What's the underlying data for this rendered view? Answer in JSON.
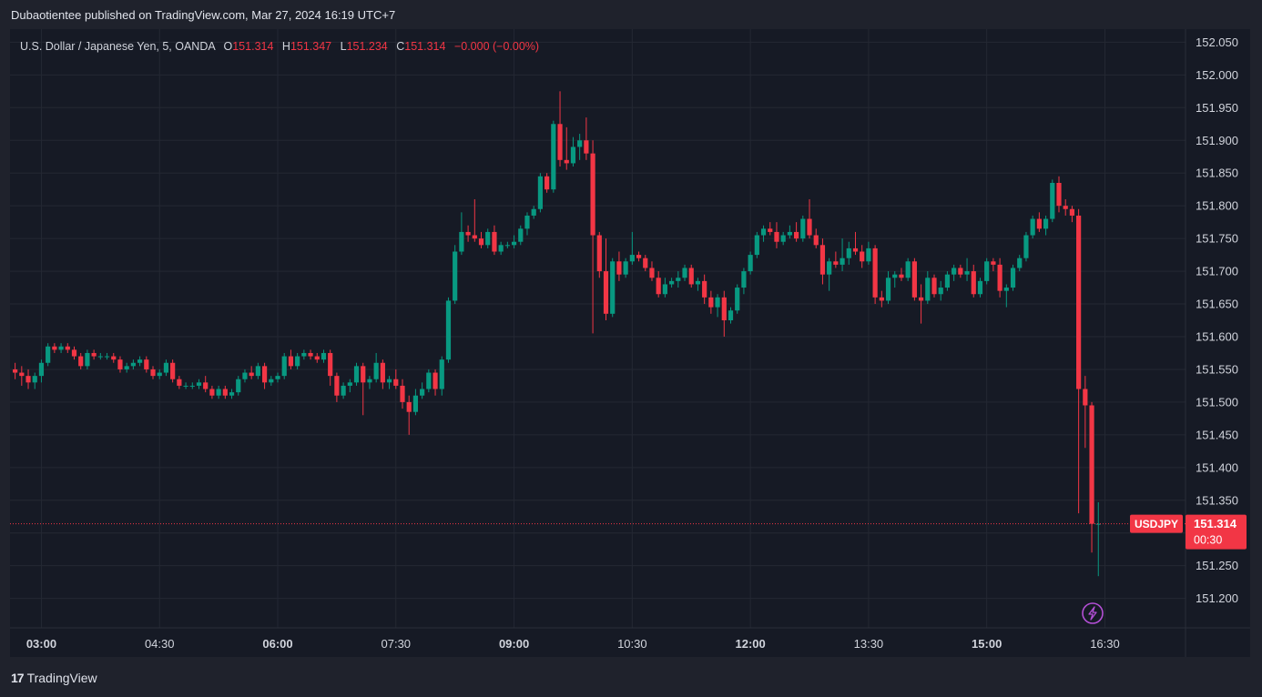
{
  "header": {
    "publisher": "Dubaotientee published on TradingView.com, Mar 27, 2024 16:19 UTC+7"
  },
  "legend": {
    "symbol": "U.S. Dollar / Japanese Yen, 5, OANDA",
    "o_label": "O",
    "o": "151.314",
    "h_label": "H",
    "h": "151.347",
    "l_label": "L",
    "l": "151.234",
    "c_label": "C",
    "c": "151.314",
    "change": "−0.000 (−0.00%)"
  },
  "price_tag": {
    "ticker": "USDJPY",
    "price": "151.314",
    "countdown": "00:30"
  },
  "logo": {
    "mark": "17",
    "text": "TradingView"
  },
  "colors": {
    "bg": "#161a25",
    "up": "#089981",
    "down": "#f23645",
    "grid": "#242833",
    "text": "#d1d4dc"
  },
  "icons": {
    "alert": "lightning-bolt-icon"
  },
  "chart_data": {
    "type": "candlestick",
    "symbol": "USDJPY",
    "interval_minutes": 5,
    "x_start": "02:40",
    "ylim": [
      151.155,
      152.07
    ],
    "y_ticks": [
      "152.050",
      "152.000",
      "151.950",
      "151.900",
      "151.850",
      "151.800",
      "151.750",
      "151.700",
      "151.650",
      "151.600",
      "151.550",
      "151.500",
      "151.450",
      "151.400",
      "151.350",
      "151.300",
      "151.250",
      "151.200"
    ],
    "x_ticks": [
      "03:00",
      "04:30",
      "06:00",
      "07:30",
      "09:00",
      "10:30",
      "12:00",
      "13:30",
      "15:00",
      "16:30"
    ],
    "x_tick_bold": [
      true,
      false,
      true,
      false,
      true,
      false,
      true,
      false,
      true,
      false
    ],
    "last_price": 151.314,
    "candles": [
      [
        151.55,
        151.56,
        151.535,
        151.545
      ],
      [
        151.545,
        151.555,
        151.525,
        151.54
      ],
      [
        151.54,
        151.55,
        151.52,
        151.53
      ],
      [
        151.53,
        151.545,
        151.52,
        151.54
      ],
      [
        151.54,
        151.565,
        151.53,
        151.56
      ],
      [
        151.56,
        151.59,
        151.555,
        151.585
      ],
      [
        151.585,
        151.59,
        151.575,
        151.58
      ],
      [
        151.58,
        151.59,
        151.575,
        151.585
      ],
      [
        151.585,
        151.59,
        151.575,
        151.58
      ],
      [
        151.58,
        151.585,
        151.565,
        151.57
      ],
      [
        151.57,
        151.575,
        151.55,
        151.555
      ],
      [
        151.555,
        151.58,
        151.55,
        151.575
      ],
      [
        151.575,
        151.58,
        151.565,
        151.57
      ],
      [
        151.57,
        151.575,
        151.565,
        151.57
      ],
      [
        151.57,
        151.575,
        151.565,
        151.57
      ],
      [
        151.57,
        151.575,
        151.56,
        151.565
      ],
      [
        151.565,
        151.57,
        151.545,
        151.55
      ],
      [
        151.55,
        151.56,
        151.545,
        151.555
      ],
      [
        151.555,
        151.565,
        151.55,
        151.56
      ],
      [
        151.56,
        151.57,
        151.555,
        151.565
      ],
      [
        151.565,
        151.57,
        151.545,
        151.55
      ],
      [
        151.55,
        151.555,
        151.535,
        151.54
      ],
      [
        151.54,
        151.55,
        151.535,
        151.545
      ],
      [
        151.545,
        151.565,
        151.54,
        151.56
      ],
      [
        151.56,
        151.565,
        151.53,
        151.535
      ],
      [
        151.535,
        151.54,
        151.52,
        151.525
      ],
      [
        151.525,
        151.53,
        151.52,
        151.525
      ],
      [
        151.525,
        151.53,
        151.52,
        151.525
      ],
      [
        151.525,
        151.535,
        151.52,
        151.53
      ],
      [
        151.53,
        151.54,
        151.515,
        151.52
      ],
      [
        151.52,
        151.525,
        151.505,
        151.51
      ],
      [
        151.51,
        151.525,
        151.505,
        151.52
      ],
      [
        151.52,
        151.525,
        151.505,
        151.51
      ],
      [
        151.51,
        151.52,
        151.505,
        151.515
      ],
      [
        151.515,
        151.54,
        151.51,
        151.535
      ],
      [
        151.535,
        151.55,
        151.53,
        151.545
      ],
      [
        151.545,
        151.555,
        151.535,
        151.54
      ],
      [
        151.54,
        151.56,
        151.535,
        151.555
      ],
      [
        151.555,
        151.56,
        151.52,
        151.53
      ],
      [
        151.53,
        151.54,
        151.525,
        151.535
      ],
      [
        151.535,
        151.545,
        151.53,
        151.54
      ],
      [
        151.54,
        151.575,
        151.535,
        151.57
      ],
      [
        151.57,
        151.58,
        151.55,
        151.555
      ],
      [
        151.555,
        151.575,
        151.55,
        151.57
      ],
      [
        151.57,
        151.58,
        151.565,
        151.575
      ],
      [
        151.575,
        151.58,
        151.565,
        151.57
      ],
      [
        151.57,
        151.575,
        151.56,
        151.565
      ],
      [
        151.565,
        151.58,
        151.56,
        151.575
      ],
      [
        151.575,
        151.58,
        151.525,
        151.54
      ],
      [
        151.54,
        151.545,
        151.5,
        151.51
      ],
      [
        151.51,
        151.53,
        151.505,
        151.525
      ],
      [
        151.525,
        151.535,
        151.515,
        151.53
      ],
      [
        151.53,
        151.56,
        151.525,
        151.555
      ],
      [
        151.555,
        151.56,
        151.48,
        151.53
      ],
      [
        151.53,
        151.54,
        151.52,
        151.535
      ],
      [
        151.535,
        151.575,
        151.53,
        151.56
      ],
      [
        151.56,
        151.565,
        151.52,
        151.53
      ],
      [
        151.53,
        151.54,
        151.52,
        151.535
      ],
      [
        151.535,
        151.55,
        151.52,
        151.525
      ],
      [
        151.525,
        151.535,
        151.49,
        151.5
      ],
      [
        151.5,
        151.51,
        151.45,
        151.485
      ],
      [
        151.485,
        151.52,
        151.48,
        151.51
      ],
      [
        151.51,
        151.53,
        151.505,
        151.52
      ],
      [
        151.52,
        151.55,
        151.515,
        151.545
      ],
      [
        151.545,
        151.55,
        151.51,
        151.52
      ],
      [
        151.52,
        151.57,
        151.51,
        151.565
      ],
      [
        151.565,
        151.66,
        151.56,
        151.655
      ],
      [
        151.655,
        151.74,
        151.65,
        151.73
      ],
      [
        151.73,
        151.79,
        151.725,
        151.76
      ],
      [
        151.76,
        151.77,
        151.745,
        151.755
      ],
      [
        151.755,
        151.81,
        151.745,
        151.75
      ],
      [
        151.75,
        151.76,
        151.735,
        151.74
      ],
      [
        151.74,
        151.765,
        151.735,
        151.76
      ],
      [
        151.76,
        151.77,
        151.725,
        151.73
      ],
      [
        151.73,
        151.745,
        151.725,
        151.74
      ],
      [
        151.74,
        151.745,
        151.735,
        151.74
      ],
      [
        151.74,
        151.755,
        151.735,
        151.745
      ],
      [
        151.745,
        151.77,
        151.74,
        151.765
      ],
      [
        151.765,
        151.79,
        151.755,
        151.785
      ],
      [
        151.785,
        151.8,
        151.78,
        151.795
      ],
      [
        151.795,
        151.85,
        151.79,
        151.845
      ],
      [
        151.845,
        151.85,
        151.82,
        151.825
      ],
      [
        151.825,
        151.93,
        151.82,
        151.925
      ],
      [
        151.925,
        151.975,
        151.86,
        151.87
      ],
      [
        151.87,
        151.92,
        151.855,
        151.865
      ],
      [
        151.865,
        151.905,
        151.86,
        151.89
      ],
      [
        151.89,
        151.91,
        151.87,
        151.9
      ],
      [
        151.9,
        151.935,
        151.87,
        151.88
      ],
      [
        151.88,
        151.9,
        151.605,
        151.755
      ],
      [
        151.755,
        151.76,
        151.69,
        151.7
      ],
      [
        151.7,
        151.75,
        151.625,
        151.635
      ],
      [
        151.635,
        151.72,
        151.63,
        151.715
      ],
      [
        151.715,
        151.73,
        151.685,
        151.695
      ],
      [
        151.695,
        151.72,
        151.69,
        151.715
      ],
      [
        151.715,
        151.76,
        151.71,
        151.725
      ],
      [
        151.725,
        151.73,
        151.715,
        151.72
      ],
      [
        151.72,
        151.725,
        151.7,
        151.705
      ],
      [
        151.705,
        151.715,
        151.685,
        151.69
      ],
      [
        151.69,
        151.7,
        151.66,
        151.665
      ],
      [
        151.665,
        151.69,
        151.66,
        151.68
      ],
      [
        151.68,
        151.69,
        151.675,
        151.685
      ],
      [
        151.685,
        151.7,
        151.675,
        151.69
      ],
      [
        151.69,
        151.71,
        151.685,
        151.705
      ],
      [
        151.705,
        151.71,
        151.675,
        151.68
      ],
      [
        151.68,
        151.69,
        151.67,
        151.685
      ],
      [
        151.685,
        151.695,
        151.65,
        151.66
      ],
      [
        151.66,
        151.67,
        151.635,
        151.645
      ],
      [
        151.645,
        151.665,
        151.63,
        151.66
      ],
      [
        151.66,
        151.67,
        151.6,
        151.625
      ],
      [
        151.625,
        151.645,
        151.62,
        151.64
      ],
      [
        151.64,
        151.68,
        151.635,
        151.675
      ],
      [
        151.675,
        151.705,
        151.665,
        151.7
      ],
      [
        151.7,
        151.73,
        151.695,
        151.725
      ],
      [
        151.725,
        151.76,
        151.72,
        151.755
      ],
      [
        151.755,
        151.77,
        151.745,
        151.765
      ],
      [
        151.765,
        151.775,
        151.755,
        151.76
      ],
      [
        151.76,
        151.775,
        151.735,
        151.745
      ],
      [
        151.745,
        151.76,
        151.74,
        151.755
      ],
      [
        151.755,
        151.77,
        151.75,
        151.76
      ],
      [
        151.76,
        151.775,
        151.745,
        151.75
      ],
      [
        151.75,
        151.785,
        151.745,
        151.78
      ],
      [
        151.78,
        151.81,
        151.75,
        151.755
      ],
      [
        151.755,
        151.765,
        151.735,
        151.74
      ],
      [
        151.74,
        151.75,
        151.68,
        151.695
      ],
      [
        151.695,
        151.72,
        151.67,
        151.715
      ],
      [
        151.715,
        151.73,
        151.705,
        151.71
      ],
      [
        151.71,
        151.75,
        151.7,
        151.72
      ],
      [
        151.72,
        151.745,
        151.71,
        151.735
      ],
      [
        151.735,
        151.76,
        151.725,
        151.73
      ],
      [
        151.73,
        151.74,
        151.705,
        151.715
      ],
      [
        151.715,
        151.745,
        151.71,
        151.735
      ],
      [
        151.735,
        151.74,
        151.65,
        151.66
      ],
      [
        151.66,
        151.67,
        151.645,
        151.655
      ],
      [
        151.655,
        151.7,
        151.65,
        151.69
      ],
      [
        151.69,
        151.7,
        151.675,
        151.695
      ],
      [
        151.695,
        151.705,
        151.685,
        151.69
      ],
      [
        151.69,
        151.72,
        151.685,
        151.715
      ],
      [
        151.715,
        151.72,
        151.655,
        151.66
      ],
      [
        151.66,
        151.68,
        151.62,
        151.655
      ],
      [
        151.655,
        151.7,
        151.65,
        151.69
      ],
      [
        151.69,
        151.695,
        151.66,
        151.665
      ],
      [
        151.665,
        151.685,
        151.655,
        151.675
      ],
      [
        151.675,
        151.7,
        151.67,
        151.695
      ],
      [
        151.695,
        151.71,
        151.685,
        151.705
      ],
      [
        151.705,
        151.71,
        151.69,
        151.695
      ],
      [
        151.695,
        151.72,
        151.685,
        151.7
      ],
      [
        151.7,
        151.71,
        151.66,
        151.665
      ],
      [
        151.665,
        151.69,
        151.66,
        151.685
      ],
      [
        151.685,
        151.72,
        151.68,
        151.715
      ],
      [
        151.715,
        151.72,
        151.7,
        151.71
      ],
      [
        151.71,
        151.72,
        151.66,
        151.67
      ],
      [
        151.67,
        151.68,
        151.645,
        151.675
      ],
      [
        151.675,
        151.71,
        151.67,
        151.705
      ],
      [
        151.705,
        151.725,
        151.7,
        151.72
      ],
      [
        151.72,
        151.76,
        151.715,
        151.755
      ],
      [
        151.755,
        151.785,
        151.75,
        151.78
      ],
      [
        151.78,
        151.79,
        151.76,
        151.765
      ],
      [
        151.765,
        151.785,
        151.755,
        151.78
      ],
      [
        151.78,
        151.84,
        151.775,
        151.835
      ],
      [
        151.835,
        151.845,
        151.79,
        151.8
      ],
      [
        151.8,
        151.81,
        151.785,
        151.795
      ],
      [
        151.795,
        151.8,
        151.775,
        151.785
      ],
      [
        151.785,
        151.795,
        151.33,
        151.52
      ],
      [
        151.52,
        151.54,
        151.43,
        151.495
      ],
      [
        151.495,
        151.5,
        151.27,
        151.314
      ],
      [
        151.314,
        151.347,
        151.234,
        151.314
      ]
    ]
  }
}
